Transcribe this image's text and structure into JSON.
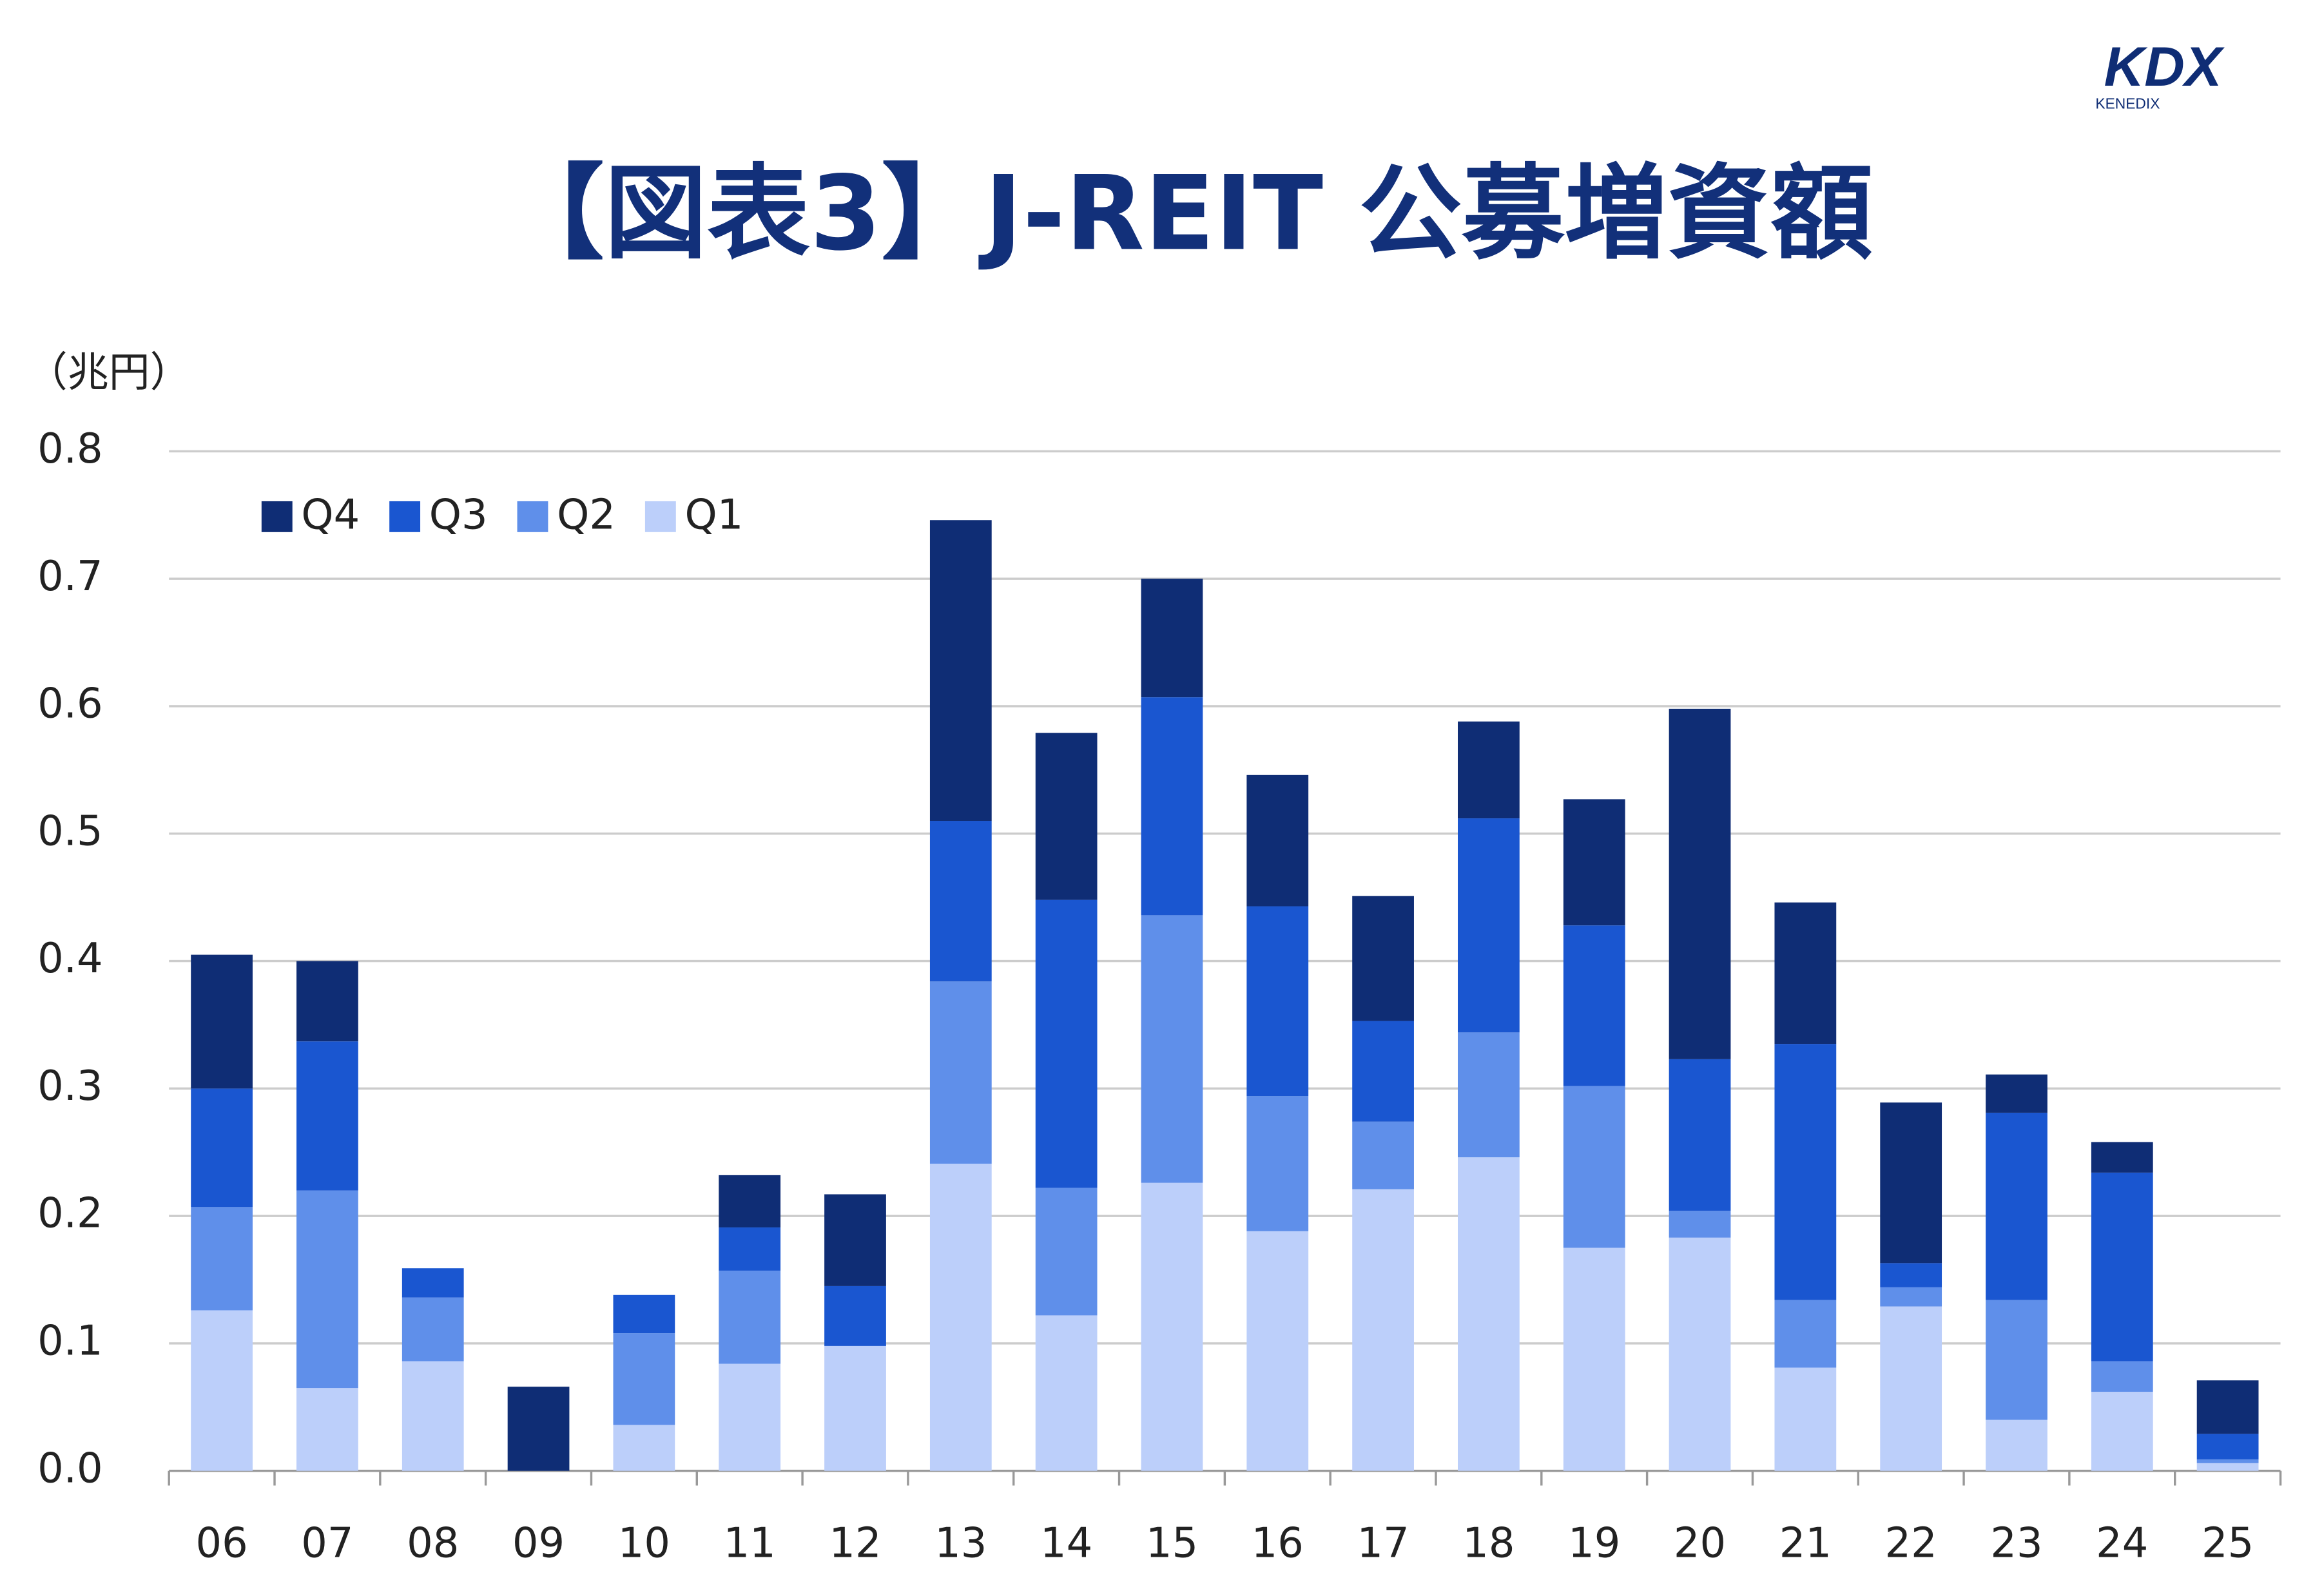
{
  "logo": {
    "mark": "KDX",
    "name": "KENEDIX"
  },
  "chart_data": {
    "type": "stacked_bar",
    "title": "【図表3】J-REIT 公募増資額",
    "y_label": "（兆円）",
    "categories": [
      "06",
      "07",
      "08",
      "09",
      "10",
      "11",
      "12",
      "13",
      "14",
      "15",
      "16",
      "17",
      "18",
      "19",
      "20",
      "21",
      "22",
      "23",
      "24",
      "25"
    ],
    "series": [
      {
        "name": "Q1",
        "color": "#bccffa",
        "values": [
          0.126,
          0.065,
          0.086,
          0,
          0.036,
          0.084,
          0.098,
          0.241,
          0.122,
          0.226,
          0.188,
          0.221,
          0.246,
          0.175,
          0.183,
          0.081,
          0.129,
          0.04,
          0.062,
          0.006
        ]
      },
      {
        "name": "Q2",
        "color": "#5f8fea",
        "values": [
          0.081,
          0.155,
          0.05,
          0,
          0.072,
          0.073,
          0,
          0.143,
          0.1,
          0.21,
          0.106,
          0.053,
          0.098,
          0.127,
          0.021,
          0.053,
          0.015,
          0.094,
          0.024,
          0.003
        ]
      },
      {
        "name": "Q3",
        "color": "#1a56d0",
        "values": [
          0.093,
          0.117,
          0.023,
          0,
          0.03,
          0.034,
          0.047,
          0.126,
          0.226,
          0.171,
          0.149,
          0.079,
          0.168,
          0.126,
          0.119,
          0.201,
          0.019,
          0.147,
          0.148,
          0.02
        ]
      },
      {
        "name": "Q4",
        "color": "#0f2d75",
        "values": [
          0.105,
          0.063,
          0,
          0.066,
          0,
          0.041,
          0.072,
          0.236,
          0.131,
          0.093,
          0.103,
          0.098,
          0.076,
          0.099,
          0.275,
          0.111,
          0.126,
          0.03,
          0.024,
          0.042
        ]
      }
    ],
    "ylim": [
      0,
      0.8
    ],
    "yticks": [
      {
        "value": 0,
        "label": "0.0"
      },
      0.1,
      0.2,
      0.3,
      0.4,
      0.5,
      0.6,
      0.7,
      0.8
    ],
    "grid": true,
    "legend": "top-left"
  }
}
